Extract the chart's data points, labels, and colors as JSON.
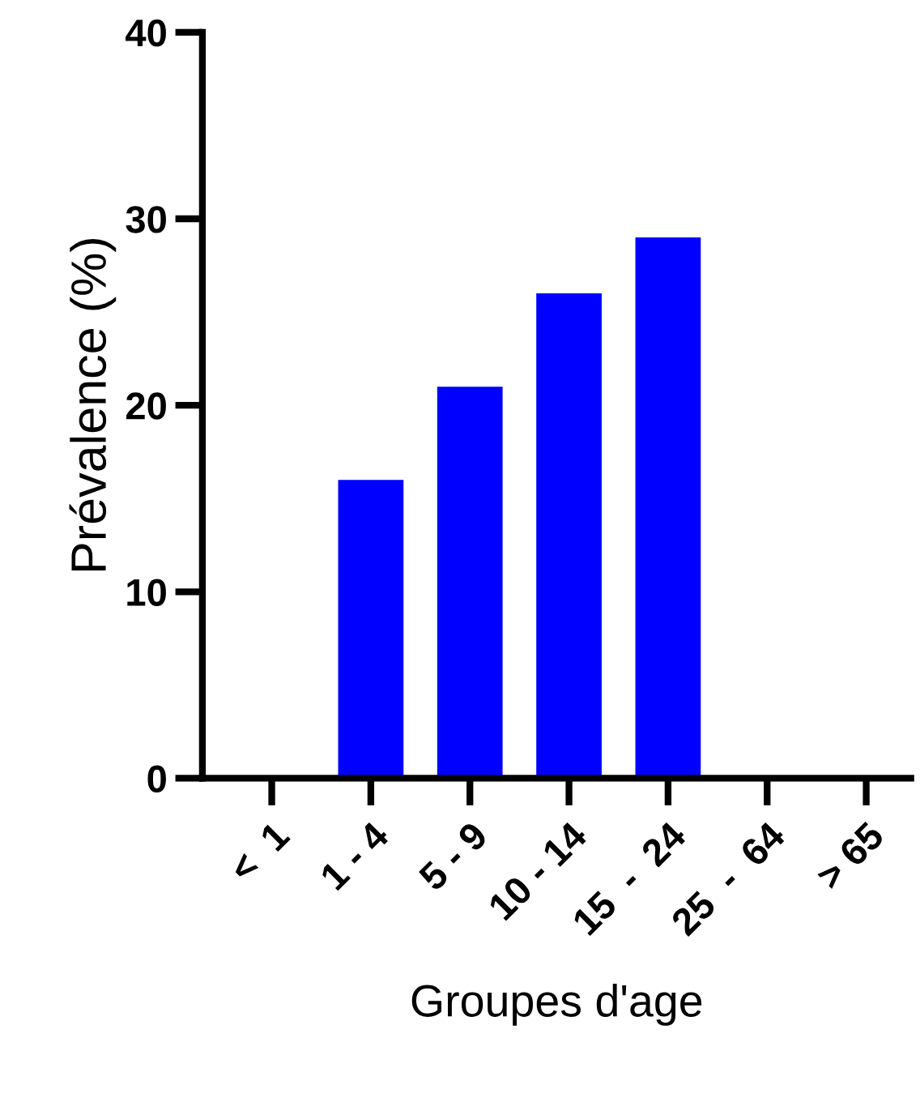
{
  "chart_data": {
    "type": "bar",
    "xlabel": "Groupes d'age",
    "ylabel": "Prévalence (%)",
    "categories": [
      "<  1",
      "1 - 4",
      "5 - 9",
      "10 - 14",
      "15  -  24",
      "25  -  64",
      "> 65"
    ],
    "values": [
      null,
      16,
      21,
      26,
      29,
      null,
      null
    ],
    "color": "#0000ff",
    "ylim": [
      0,
      40
    ],
    "yticks": [
      0,
      10,
      20,
      30,
      40
    ],
    "grid": false,
    "legend": false
  }
}
